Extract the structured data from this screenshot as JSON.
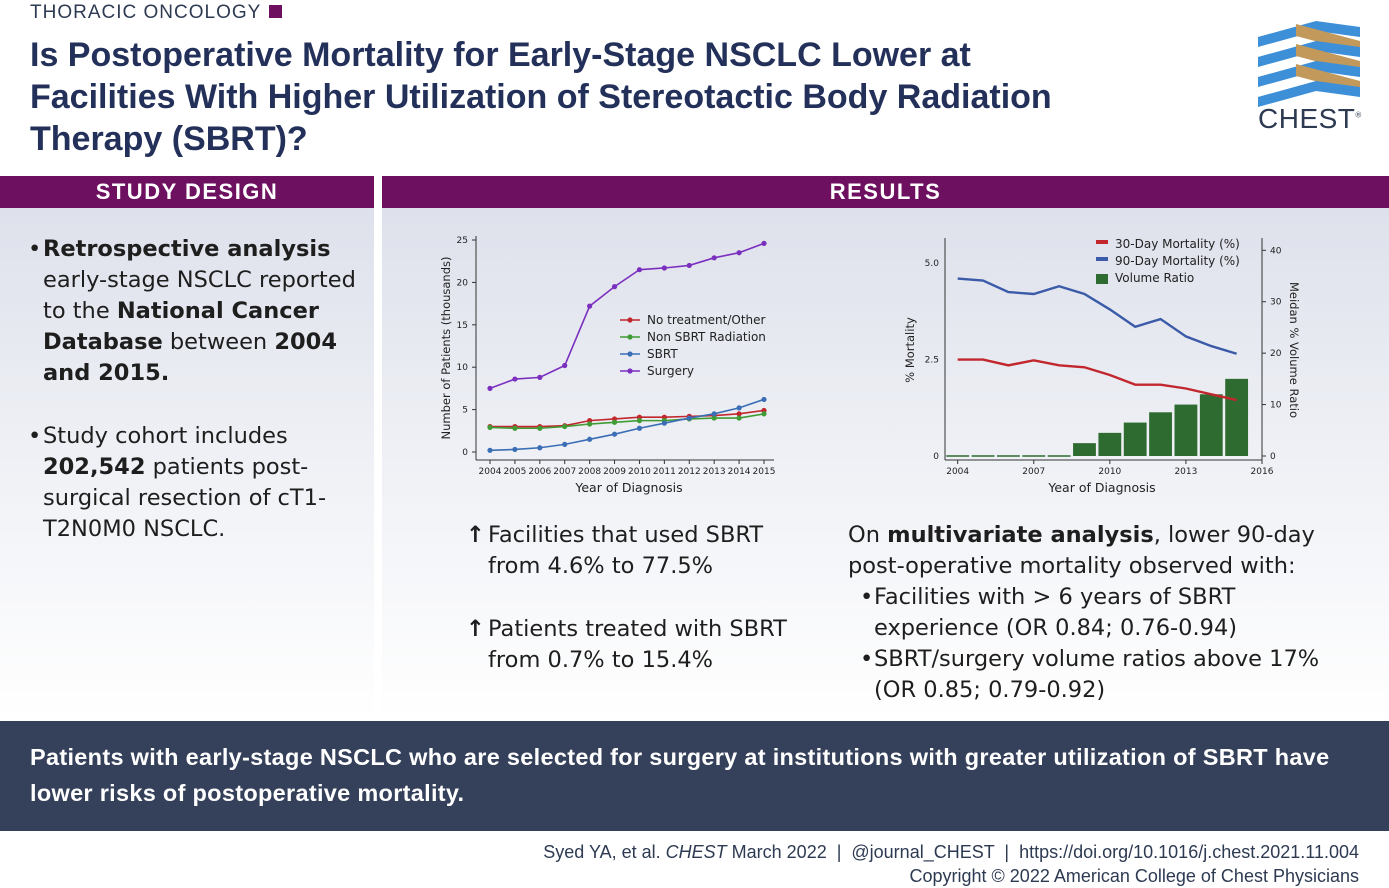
{
  "header": {
    "section": "THORACIC ONCOLOGY",
    "title": "Is Postoperative Mortality for Early-Stage NSCLC Lower at Facilities With Higher Utilization of Stereotactic Body Radiation Therapy (SBRT)?",
    "logo_text": "CHEST",
    "logo_mark": "®"
  },
  "colors": {
    "purple": "#6e1060",
    "navy": "#23305a",
    "footer_bg": "#35405a"
  },
  "study_design": {
    "heading": "STUDY DESIGN",
    "b1_bold": "Retrospective analysis",
    "b1_t1": " early-stage NSCLC reported to the ",
    "b1_bold2": "National Cancer Database",
    "b1_t2": " between ",
    "b1_bold3": "2004 and 2015.",
    "b2_t1": "Study cohort includes ",
    "b2_bold": "202,542",
    "b2_t2": " patients post-surgical resection of cT1-T2N0M0 NSCLC."
  },
  "results": {
    "heading": "RESULTS",
    "finding1": "Facilities that used SBRT from 4.6% to 77.5%",
    "finding2": "Patients treated with SBRT from 0.7% to 15.4%",
    "multi_prefix": "On ",
    "multi_bold": "multivariate analysis",
    "multi_suffix": ", lower 90-day post-operative mortality observed with:",
    "mb1": "Facilities with > 6 years of SBRT experience (OR 0.84; 0.76-0.94)",
    "mb2": "SBRT/surgery volume ratios above 17% (OR 0.85; 0.79-0.92)"
  },
  "conclusion": "Patients with early-stage NSCLC who are selected for surgery at institutions with greater utilization of SBRT have lower risks of postoperative mortality.",
  "citation": {
    "authors": "Syed YA, et al. ",
    "journal": "CHEST",
    "rest": " March 2022  |  @journal_CHEST  |  https://doi.org/10.1016/j.chest.2021.11.004",
    "copyright": "Copyright © 2022 American College of Chest Physicians"
  },
  "chart_data": [
    {
      "type": "line",
      "xlabel": "Year of Diagnosis",
      "ylabel": "Number of Patients (thousands)",
      "ylim": [
        0,
        25
      ],
      "yticks": [
        "0",
        "5",
        "10",
        "15",
        "20",
        "25"
      ],
      "x": [
        "2004",
        "2005",
        "2006",
        "2007",
        "2008",
        "2009",
        "2010",
        "2011",
        "2012",
        "2013",
        "2014",
        "2015"
      ],
      "legend_position": "center-right",
      "series": [
        {
          "name": "No treatment/Other",
          "color": "#c1272d",
          "values": [
            3.0,
            3.0,
            3.0,
            3.1,
            3.7,
            3.9,
            4.1,
            4.1,
            4.2,
            4.3,
            4.5,
            4.9
          ]
        },
        {
          "name": "Non SBRT Radiation",
          "color": "#3f9c35",
          "values": [
            2.9,
            2.8,
            2.8,
            3.0,
            3.3,
            3.5,
            3.7,
            3.7,
            3.9,
            4.0,
            4.0,
            4.5
          ]
        },
        {
          "name": "SBRT",
          "color": "#3b6eb5",
          "values": [
            0.2,
            0.3,
            0.5,
            0.9,
            1.5,
            2.1,
            2.8,
            3.4,
            4.0,
            4.5,
            5.2,
            6.2
          ]
        },
        {
          "name": "Surgery",
          "color": "#7b2fbf",
          "values": [
            7.5,
            8.6,
            8.8,
            10.2,
            17.2,
            19.5,
            21.5,
            21.7,
            22.0,
            22.9,
            23.5,
            24.6
          ]
        }
      ]
    },
    {
      "type": "bar+line",
      "xlabel": "Year of Diagnosis",
      "ylabel": "% Mortality",
      "y2label": "Meidan % Volume Ratio",
      "ylim": [
        0,
        5.6
      ],
      "yticks": [
        "0",
        "2.5",
        "5.0"
      ],
      "y2lim": [
        0,
        42
      ],
      "y2ticks": [
        "0",
        "10",
        "20",
        "30",
        "40"
      ],
      "xticks": [
        "2004",
        "2007",
        "2010",
        "2013",
        "2016"
      ],
      "x": [
        2004,
        2005,
        2006,
        2007,
        2008,
        2009,
        2010,
        2011,
        2012,
        2013,
        2014,
        2015
      ],
      "legend_position": "top",
      "series": [
        {
          "name": "30-Day Mortality (%)",
          "color": "#c1272d",
          "values": [
            2.5,
            2.5,
            2.35,
            2.48,
            2.35,
            2.3,
            2.1,
            1.85,
            1.85,
            1.75,
            1.6,
            1.45
          ]
        },
        {
          "name": "90-Day Mortality (%)",
          "color": "#3b5ba8",
          "values": [
            4.6,
            4.55,
            4.25,
            4.2,
            4.4,
            4.2,
            3.8,
            3.35,
            3.55,
            3.1,
            2.85,
            2.65
          ]
        },
        {
          "name": "Volume Ratio",
          "color": "#2e6b30",
          "values": [
            0,
            0,
            0,
            0,
            0,
            2.5,
            4.5,
            6.5,
            8.5,
            10,
            12,
            15
          ]
        }
      ]
    }
  ]
}
